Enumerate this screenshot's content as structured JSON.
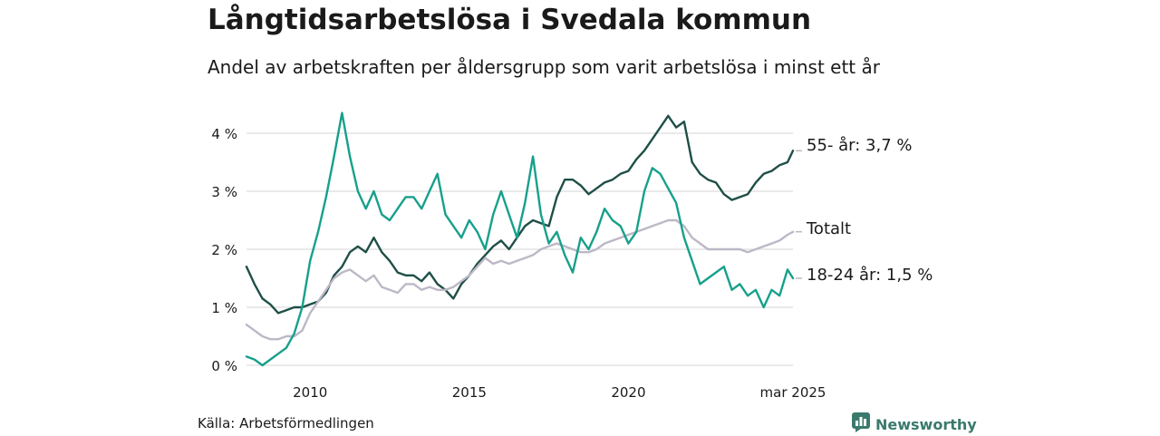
{
  "header": {
    "title": "Långtidsarbetslösa i Svedala kommun",
    "subtitle": "Andel av arbetskraften per åldersgrupp som varit arbetslösa i minst ett år"
  },
  "footer": {
    "source": "Källa: Arbetsförmedlingen",
    "brand": "Newsworthy"
  },
  "colors": {
    "age_55": "#1f4f47",
    "total": "#bdb8c6",
    "age_18_24": "#17a08b",
    "grid": "#dddddd",
    "brand": "#3a7a6c"
  },
  "icons": {
    "brand_logo": "bar-chart-logo-icon"
  },
  "chart_data": {
    "type": "line",
    "title": "Långtidsarbetslösa i Svedala kommun",
    "subtitle": "Andel av arbetskraften per åldersgrupp som varit arbetslösa i minst ett år",
    "xlabel": "",
    "ylabel": "",
    "ylim": [
      0,
      4.5
    ],
    "y_unit": "%",
    "grid": true,
    "legend": "end-of-line labels",
    "y_ticks": [
      {
        "value": 0,
        "label": "0 %"
      },
      {
        "value": 1,
        "label": "1 %"
      },
      {
        "value": 2,
        "label": "2 %"
      },
      {
        "value": 3,
        "label": "3 %"
      },
      {
        "value": 4,
        "label": "4 %"
      }
    ],
    "x_ticks": [
      {
        "value": 2010,
        "label": "2010"
      },
      {
        "value": 2015,
        "label": "2015"
      },
      {
        "value": 2020,
        "label": "2020"
      },
      {
        "value": 2025.17,
        "label": "mar 2025"
      }
    ],
    "xlim": [
      2008,
      2025.17
    ],
    "series": [
      {
        "name": "55- år",
        "end_label": "55- år: 3,7 %",
        "color": "#1f4f47",
        "points": [
          [
            2008.0,
            1.7
          ],
          [
            2008.25,
            1.4
          ],
          [
            2008.5,
            1.15
          ],
          [
            2008.75,
            1.05
          ],
          [
            2009.0,
            0.9
          ],
          [
            2009.25,
            0.95
          ],
          [
            2009.5,
            1.0
          ],
          [
            2009.75,
            1.0
          ],
          [
            2010.0,
            1.05
          ],
          [
            2010.25,
            1.1
          ],
          [
            2010.5,
            1.25
          ],
          [
            2010.75,
            1.55
          ],
          [
            2011.0,
            1.7
          ],
          [
            2011.25,
            1.95
          ],
          [
            2011.5,
            2.05
          ],
          [
            2011.75,
            1.95
          ],
          [
            2012.0,
            2.2
          ],
          [
            2012.25,
            1.95
          ],
          [
            2012.5,
            1.8
          ],
          [
            2012.75,
            1.6
          ],
          [
            2013.0,
            1.55
          ],
          [
            2013.25,
            1.55
          ],
          [
            2013.5,
            1.45
          ],
          [
            2013.75,
            1.6
          ],
          [
            2014.0,
            1.4
          ],
          [
            2014.25,
            1.3
          ],
          [
            2014.5,
            1.15
          ],
          [
            2014.75,
            1.4
          ],
          [
            2015.0,
            1.55
          ],
          [
            2015.25,
            1.75
          ],
          [
            2015.5,
            1.9
          ],
          [
            2015.75,
            2.05
          ],
          [
            2016.0,
            2.15
          ],
          [
            2016.25,
            2.0
          ],
          [
            2016.5,
            2.2
          ],
          [
            2016.75,
            2.4
          ],
          [
            2017.0,
            2.5
          ],
          [
            2017.25,
            2.45
          ],
          [
            2017.5,
            2.4
          ],
          [
            2017.75,
            2.9
          ],
          [
            2018.0,
            3.2
          ],
          [
            2018.25,
            3.2
          ],
          [
            2018.5,
            3.1
          ],
          [
            2018.75,
            2.95
          ],
          [
            2019.0,
            3.05
          ],
          [
            2019.25,
            3.15
          ],
          [
            2019.5,
            3.2
          ],
          [
            2019.75,
            3.3
          ],
          [
            2020.0,
            3.35
          ],
          [
            2020.25,
            3.55
          ],
          [
            2020.5,
            3.7
          ],
          [
            2020.75,
            3.9
          ],
          [
            2021.0,
            4.1
          ],
          [
            2021.25,
            4.3
          ],
          [
            2021.5,
            4.1
          ],
          [
            2021.75,
            4.2
          ],
          [
            2022.0,
            3.5
          ],
          [
            2022.25,
            3.3
          ],
          [
            2022.5,
            3.2
          ],
          [
            2022.75,
            3.15
          ],
          [
            2023.0,
            2.95
          ],
          [
            2023.25,
            2.85
          ],
          [
            2023.5,
            2.9
          ],
          [
            2023.75,
            2.95
          ],
          [
            2024.0,
            3.15
          ],
          [
            2024.25,
            3.3
          ],
          [
            2024.5,
            3.35
          ],
          [
            2024.75,
            3.45
          ],
          [
            2025.0,
            3.5
          ],
          [
            2025.17,
            3.7
          ]
        ]
      },
      {
        "name": "Totalt",
        "end_label": "Totalt",
        "color": "#bdb8c6",
        "points": [
          [
            2008.0,
            0.7
          ],
          [
            2008.25,
            0.6
          ],
          [
            2008.5,
            0.5
          ],
          [
            2008.75,
            0.45
          ],
          [
            2009.0,
            0.45
          ],
          [
            2009.25,
            0.5
          ],
          [
            2009.5,
            0.5
          ],
          [
            2009.75,
            0.6
          ],
          [
            2010.0,
            0.9
          ],
          [
            2010.25,
            1.1
          ],
          [
            2010.5,
            1.3
          ],
          [
            2010.75,
            1.5
          ],
          [
            2011.0,
            1.6
          ],
          [
            2011.25,
            1.65
          ],
          [
            2011.5,
            1.55
          ],
          [
            2011.75,
            1.45
          ],
          [
            2012.0,
            1.55
          ],
          [
            2012.25,
            1.35
          ],
          [
            2012.5,
            1.3
          ],
          [
            2012.75,
            1.25
          ],
          [
            2013.0,
            1.4
          ],
          [
            2013.25,
            1.4
          ],
          [
            2013.5,
            1.3
          ],
          [
            2013.75,
            1.35
          ],
          [
            2014.0,
            1.3
          ],
          [
            2014.25,
            1.3
          ],
          [
            2014.5,
            1.35
          ],
          [
            2014.75,
            1.45
          ],
          [
            2015.0,
            1.55
          ],
          [
            2015.25,
            1.7
          ],
          [
            2015.5,
            1.85
          ],
          [
            2015.75,
            1.75
          ],
          [
            2016.0,
            1.8
          ],
          [
            2016.25,
            1.75
          ],
          [
            2016.5,
            1.8
          ],
          [
            2016.75,
            1.85
          ],
          [
            2017.0,
            1.9
          ],
          [
            2017.25,
            2.0
          ],
          [
            2017.5,
            2.05
          ],
          [
            2017.75,
            2.1
          ],
          [
            2018.0,
            2.05
          ],
          [
            2018.25,
            2.0
          ],
          [
            2018.5,
            1.95
          ],
          [
            2018.75,
            1.95
          ],
          [
            2019.0,
            2.0
          ],
          [
            2019.25,
            2.1
          ],
          [
            2019.5,
            2.15
          ],
          [
            2019.75,
            2.2
          ],
          [
            2020.0,
            2.25
          ],
          [
            2020.25,
            2.3
          ],
          [
            2020.5,
            2.35
          ],
          [
            2020.75,
            2.4
          ],
          [
            2021.0,
            2.45
          ],
          [
            2021.25,
            2.5
          ],
          [
            2021.5,
            2.5
          ],
          [
            2021.75,
            2.4
          ],
          [
            2022.0,
            2.2
          ],
          [
            2022.25,
            2.1
          ],
          [
            2022.5,
            2.0
          ],
          [
            2022.75,
            2.0
          ],
          [
            2023.0,
            2.0
          ],
          [
            2023.25,
            2.0
          ],
          [
            2023.5,
            2.0
          ],
          [
            2023.75,
            1.95
          ],
          [
            2024.0,
            2.0
          ],
          [
            2024.25,
            2.05
          ],
          [
            2024.5,
            2.1
          ],
          [
            2024.75,
            2.15
          ],
          [
            2025.0,
            2.25
          ],
          [
            2025.17,
            2.3
          ]
        ]
      },
      {
        "name": "18-24 år",
        "end_label": "18-24 år: 1,5 %",
        "color": "#17a08b",
        "points": [
          [
            2008.0,
            0.15
          ],
          [
            2008.25,
            0.1
          ],
          [
            2008.5,
            0.0
          ],
          [
            2008.75,
            0.1
          ],
          [
            2009.0,
            0.2
          ],
          [
            2009.25,
            0.3
          ],
          [
            2009.5,
            0.55
          ],
          [
            2009.75,
            1.0
          ],
          [
            2010.0,
            1.8
          ],
          [
            2010.25,
            2.3
          ],
          [
            2010.5,
            2.9
          ],
          [
            2010.75,
            3.6
          ],
          [
            2011.0,
            4.35
          ],
          [
            2011.25,
            3.6
          ],
          [
            2011.5,
            3.0
          ],
          [
            2011.75,
            2.7
          ],
          [
            2012.0,
            3.0
          ],
          [
            2012.25,
            2.6
          ],
          [
            2012.5,
            2.5
          ],
          [
            2012.75,
            2.7
          ],
          [
            2013.0,
            2.9
          ],
          [
            2013.25,
            2.9
          ],
          [
            2013.5,
            2.7
          ],
          [
            2013.75,
            3.0
          ],
          [
            2014.0,
            3.3
          ],
          [
            2014.25,
            2.6
          ],
          [
            2014.5,
            2.4
          ],
          [
            2014.75,
            2.2
          ],
          [
            2015.0,
            2.5
          ],
          [
            2015.25,
            2.3
          ],
          [
            2015.5,
            2.0
          ],
          [
            2015.75,
            2.6
          ],
          [
            2016.0,
            3.0
          ],
          [
            2016.25,
            2.6
          ],
          [
            2016.5,
            2.2
          ],
          [
            2016.75,
            2.8
          ],
          [
            2017.0,
            3.6
          ],
          [
            2017.25,
            2.6
          ],
          [
            2017.5,
            2.1
          ],
          [
            2017.75,
            2.3
          ],
          [
            2018.0,
            1.9
          ],
          [
            2018.25,
            1.6
          ],
          [
            2018.5,
            2.2
          ],
          [
            2018.75,
            2.0
          ],
          [
            2019.0,
            2.3
          ],
          [
            2019.25,
            2.7
          ],
          [
            2019.5,
            2.5
          ],
          [
            2019.75,
            2.4
          ],
          [
            2020.0,
            2.1
          ],
          [
            2020.25,
            2.3
          ],
          [
            2020.5,
            3.0
          ],
          [
            2020.75,
            3.4
          ],
          [
            2021.0,
            3.3
          ],
          [
            2021.25,
            3.05
          ],
          [
            2021.5,
            2.8
          ],
          [
            2021.75,
            2.2
          ],
          [
            2022.0,
            1.8
          ],
          [
            2022.25,
            1.4
          ],
          [
            2022.5,
            1.5
          ],
          [
            2022.75,
            1.6
          ],
          [
            2023.0,
            1.7
          ],
          [
            2023.25,
            1.3
          ],
          [
            2023.5,
            1.4
          ],
          [
            2023.75,
            1.2
          ],
          [
            2024.0,
            1.3
          ],
          [
            2024.25,
            1.0
          ],
          [
            2024.5,
            1.3
          ],
          [
            2024.75,
            1.2
          ],
          [
            2025.0,
            1.65
          ],
          [
            2025.17,
            1.5
          ]
        ]
      }
    ]
  }
}
